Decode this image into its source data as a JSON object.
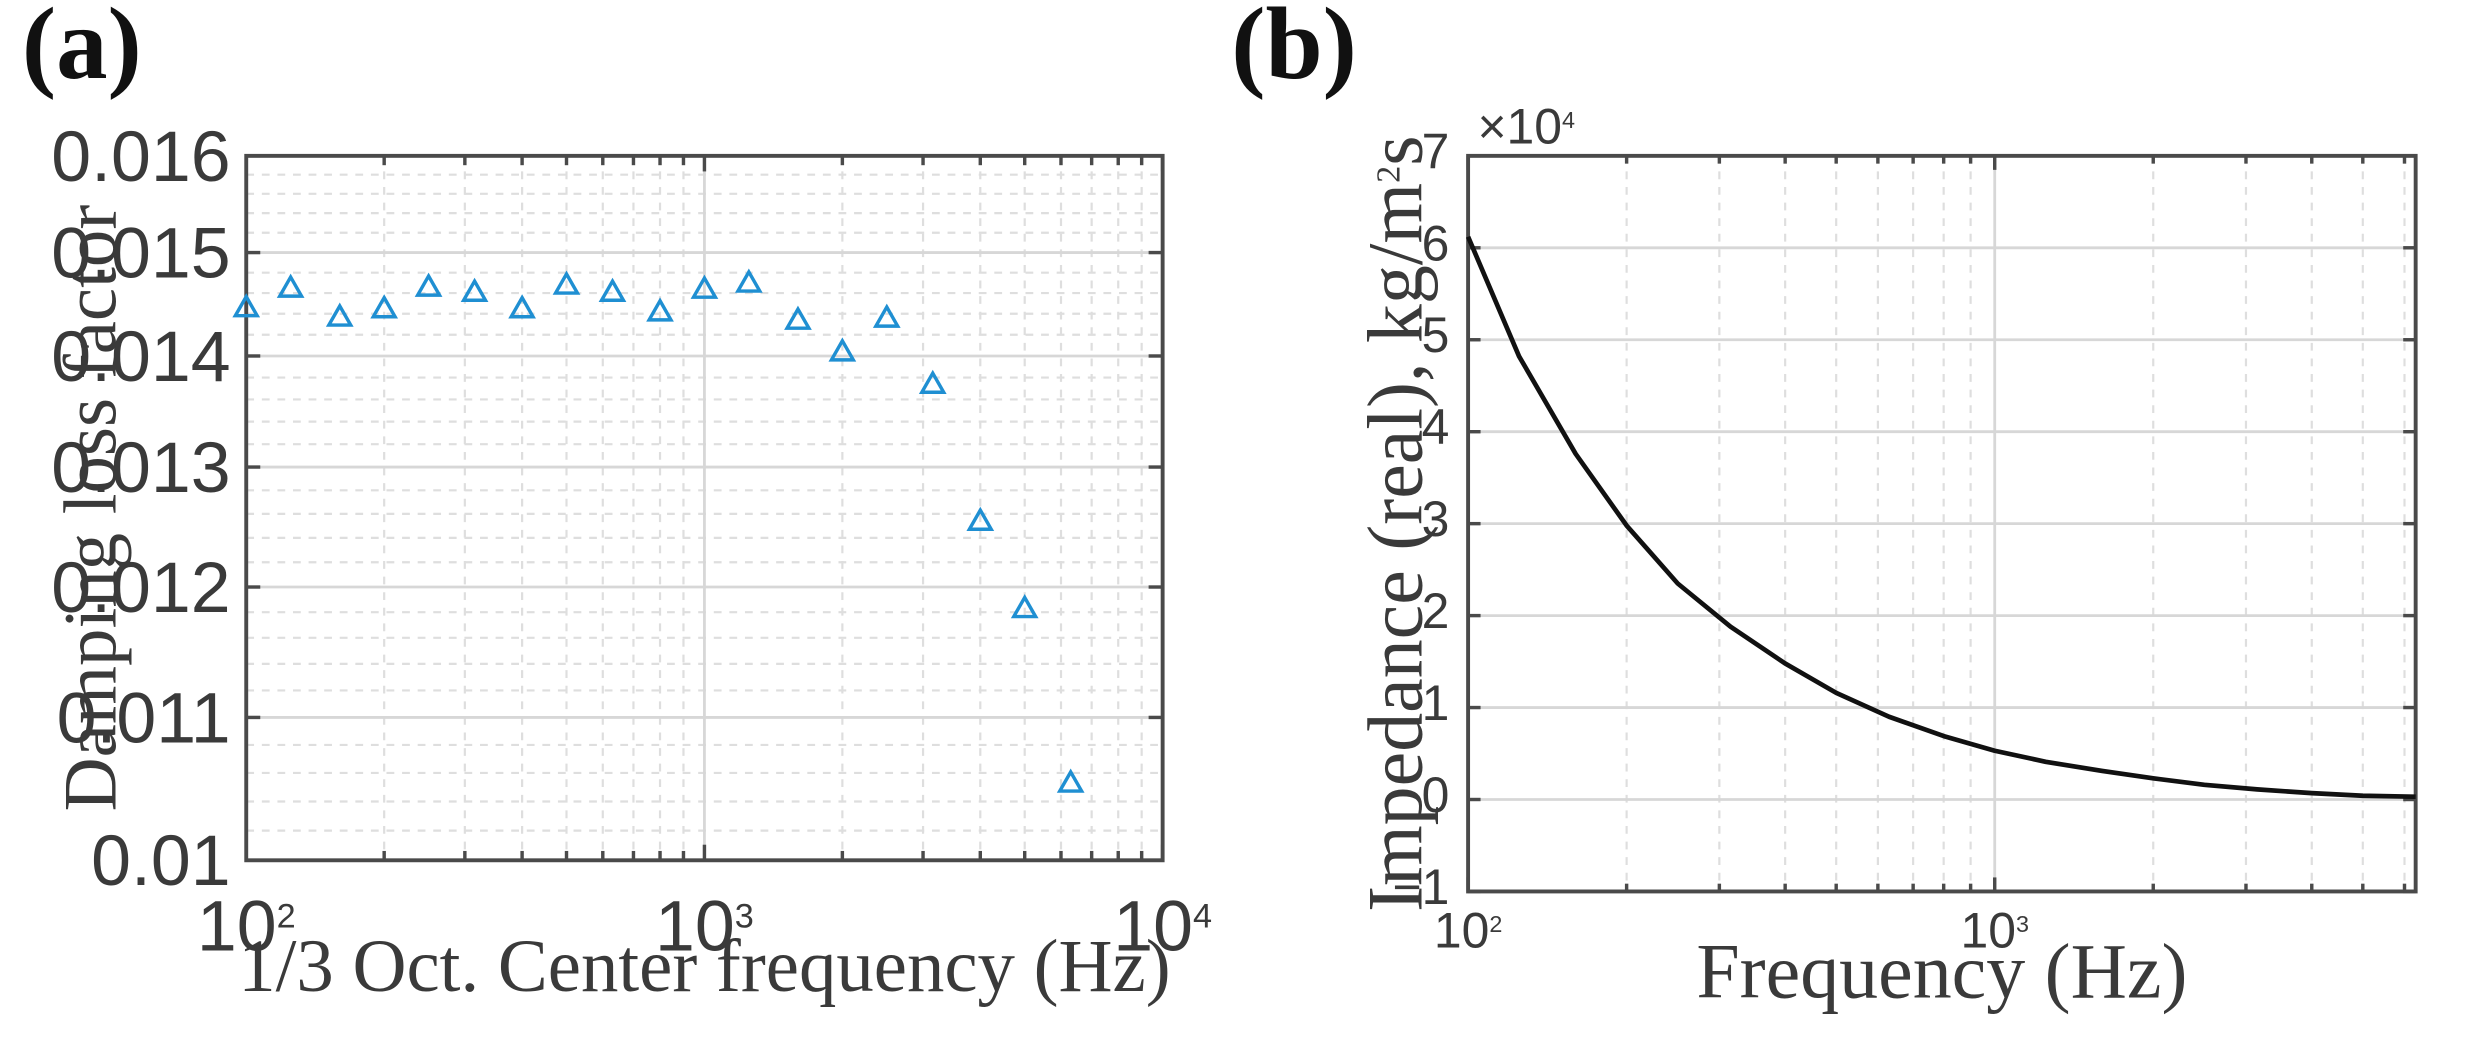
{
  "chart_data": [
    {
      "type": "scatter",
      "panel_label": "(a)",
      "xlabel": "1/3 Oct. Center frequency (Hz)",
      "ylabel": "Damping loss factor",
      "xscale": "log",
      "yscale": "log",
      "xlim": [
        100,
        10000
      ],
      "ylim": [
        0.01,
        0.016
      ],
      "grid": true,
      "marker": "triangle",
      "color": "#1f8fd2",
      "x_ticks": [
        {
          "value": 100,
          "base": "10",
          "exp": "2"
        },
        {
          "value": 1000,
          "base": "10",
          "exp": "3"
        },
        {
          "value": 10000,
          "base": "10",
          "exp": "4"
        }
      ],
      "y_ticks": [
        {
          "value": 0.01,
          "label": "0.01"
        },
        {
          "value": 0.011,
          "label": "0.011"
        },
        {
          "value": 0.012,
          "label": "0.012"
        },
        {
          "value": 0.013,
          "label": "0.013"
        },
        {
          "value": 0.014,
          "label": "0.014"
        },
        {
          "value": 0.015,
          "label": "0.015"
        },
        {
          "value": 0.016,
          "label": "0.016"
        }
      ],
      "x": [
        100,
        125,
        160,
        200,
        250,
        315,
        400,
        500,
        630,
        800,
        1000,
        1250,
        1600,
        2000,
        2500,
        3150,
        4000,
        5000,
        6300
      ],
      "y": [
        0.01446,
        0.01465,
        0.01437,
        0.01445,
        0.01466,
        0.01461,
        0.01445,
        0.01468,
        0.01461,
        0.01442,
        0.01464,
        0.0147,
        0.01434,
        0.01404,
        0.01436,
        0.01374,
        0.01254,
        0.01183,
        0.01053
      ]
    },
    {
      "type": "line",
      "panel_label": "(b)",
      "xlabel": "Frequency (Hz)",
      "ylabel_parts": {
        "pre": "Impedance (real), kg/m",
        "sup": "2",
        "post": "s"
      },
      "xscale": "log",
      "yscale": "linear",
      "xlim": [
        100,
        6300
      ],
      "ylim": [
        -1,
        7
      ],
      "y_multiplier": {
        "base": "×10",
        "exp": "4"
      },
      "grid": true,
      "color": "#111111",
      "x_ticks": [
        {
          "value": 100,
          "base": "10",
          "exp": "2"
        },
        {
          "value": 1000,
          "base": "10",
          "exp": "3"
        }
      ],
      "y_ticks": [
        {
          "value": -1,
          "label": "−1"
        },
        {
          "value": 0,
          "label": "0"
        },
        {
          "value": 1,
          "label": "1"
        },
        {
          "value": 2,
          "label": "2"
        },
        {
          "value": 3,
          "label": "3"
        },
        {
          "value": 4,
          "label": "4"
        },
        {
          "value": 5,
          "label": "5"
        },
        {
          "value": 6,
          "label": "6"
        },
        {
          "value": 7,
          "label": "7"
        }
      ],
      "x": [
        100,
        125,
        160,
        200,
        250,
        315,
        400,
        500,
        630,
        800,
        1000,
        1250,
        1600,
        2000,
        2500,
        3150,
        4000,
        5000,
        6300
      ],
      "y": [
        6.12,
        4.82,
        3.76,
        2.98,
        2.35,
        1.88,
        1.48,
        1.16,
        0.9,
        0.69,
        0.53,
        0.41,
        0.31,
        0.23,
        0.16,
        0.11,
        0.07,
        0.04,
        0.03
      ]
    }
  ]
}
